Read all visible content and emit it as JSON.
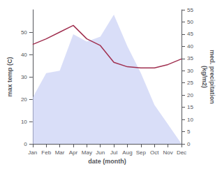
{
  "chart_data": {
    "type": "line",
    "xlabel": "date (month)",
    "ylabel": "max temp (C)",
    "y2label": "med. precipitation\n(kg/m2)",
    "categories": [
      "Jan",
      "Feb",
      "Mar",
      "Apr",
      "May",
      "Jun",
      "Jul",
      "Aug",
      "Sep",
      "Oct",
      "Nov",
      "Dec"
    ],
    "series": [
      {
        "type": "area",
        "color": "#c5cdf5",
        "axis": "y2",
        "values": [
          19,
          29,
          30,
          45,
          42,
          44,
          53,
          40,
          29,
          16,
          8,
          0
        ]
      },
      {
        "type": "line",
        "color": "#a03050",
        "values": [
          44.5,
          47.0,
          50.0,
          53.0,
          47.0,
          44.0,
          36.5,
          34.5,
          34.0,
          34.0,
          35.5,
          38.0
        ]
      }
    ],
    "ylim": [
      0,
      60
    ],
    "yticks": [
      0,
      10,
      20,
      30,
      40,
      50
    ],
    "y2lim": [
      0,
      55
    ],
    "y2ticks": [
      0,
      5,
      10,
      15,
      20,
      25,
      30,
      35,
      40,
      45,
      50,
      55
    ],
    "grid": false
  }
}
